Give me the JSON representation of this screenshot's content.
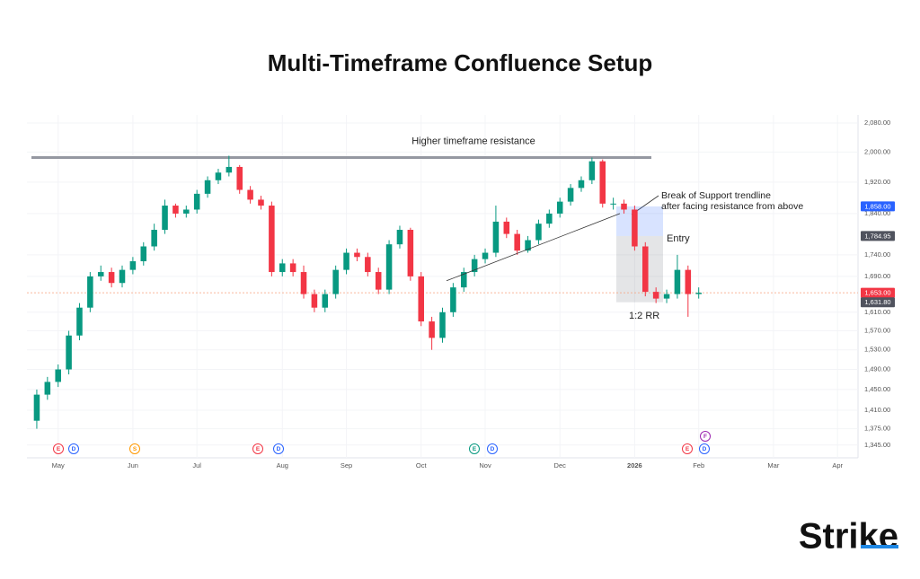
{
  "chart_data": {
    "type": "candlestick",
    "title": "Multi-Timeframe Confluence Setup",
    "categories": [
      null,
      null,
      "May",
      null,
      null,
      null,
      null,
      null,
      null,
      "Jun",
      null,
      null,
      null,
      null,
      null,
      "Jul",
      null,
      null,
      null,
      null,
      null,
      null,
      null,
      "Aug",
      null,
      null,
      null,
      null,
      null,
      "Sep",
      null,
      null,
      null,
      null,
      null,
      null,
      "Oct",
      null,
      null,
      null,
      null,
      null,
      "Nov",
      null,
      null,
      null,
      null,
      null,
      null,
      "Dec",
      null,
      null,
      null,
      null,
      null,
      null,
      "2026",
      null,
      null,
      null,
      null,
      null,
      "Feb",
      null,
      null,
      null,
      null,
      null,
      null,
      "Mar",
      null,
      null,
      null,
      null,
      null,
      "Apr",
      null
    ],
    "open": [
      1390,
      1440,
      1465,
      1490,
      1560,
      1620,
      1690,
      1700,
      1675,
      1705,
      1725,
      1760,
      1800,
      1860,
      1840,
      1850,
      1890,
      1925,
      1945,
      1960,
      1900,
      1875,
      1860,
      1700,
      1720,
      1700,
      1650,
      1620,
      1650,
      1705,
      1745,
      1735,
      1700,
      1660,
      1765,
      1800,
      1690,
      1590,
      1555,
      1610,
      1665,
      1700,
      1730,
      1745,
      1820,
      1790,
      1750,
      1775,
      1815,
      1840,
      1870,
      1905,
      1925,
      1975,
      1865,
      1865,
      1850,
      1760,
      1655,
      1640,
      1650,
      1705,
      1650,
      null,
      null,
      null,
      null,
      null,
      null,
      null,
      null,
      null,
      null,
      null,
      null,
      null,
      null
    ],
    "high": [
      1450,
      1475,
      1500,
      1570,
      1630,
      1700,
      1715,
      1710,
      1715,
      1735,
      1770,
      1815,
      1875,
      1865,
      1860,
      1900,
      1935,
      1955,
      1990,
      1965,
      1910,
      1885,
      1870,
      1730,
      1730,
      1715,
      1660,
      1660,
      1715,
      1755,
      1755,
      1745,
      1710,
      1775,
      1810,
      1805,
      1700,
      1600,
      1620,
      1675,
      1710,
      1740,
      1755,
      1860,
      1830,
      1800,
      1785,
      1825,
      1850,
      1880,
      1915,
      1935,
      1985,
      1980,
      1880,
      1875,
      1860,
      1770,
      1665,
      1660,
      1740,
      1715,
      1665,
      null,
      null,
      null,
      null,
      null,
      null,
      null,
      null,
      null,
      null,
      null,
      null,
      null,
      null
    ],
    "low": [
      1375,
      1430,
      1455,
      1480,
      1550,
      1610,
      1680,
      1665,
      1665,
      1695,
      1715,
      1750,
      1790,
      1830,
      1830,
      1840,
      1880,
      1915,
      1935,
      1890,
      1865,
      1850,
      1690,
      1690,
      1690,
      1640,
      1610,
      1610,
      1640,
      1695,
      1725,
      1690,
      1650,
      1650,
      1755,
      1680,
      1580,
      1530,
      1545,
      1600,
      1655,
      1690,
      1720,
      1735,
      1780,
      1740,
      1745,
      1765,
      1805,
      1830,
      1860,
      1895,
      1915,
      1855,
      1850,
      1840,
      1750,
      1645,
      1630,
      1630,
      1640,
      1600,
      1640,
      null,
      null,
      null,
      null,
      null,
      null,
      null,
      null,
      null,
      null,
      null,
      null,
      null,
      null
    ],
    "close": [
      1440,
      1465,
      1490,
      1560,
      1620,
      1690,
      1700,
      1675,
      1705,
      1725,
      1760,
      1800,
      1860,
      1840,
      1850,
      1890,
      1925,
      1945,
      1960,
      1900,
      1875,
      1860,
      1700,
      1720,
      1700,
      1650,
      1620,
      1650,
      1705,
      1745,
      1735,
      1700,
      1660,
      1765,
      1800,
      1690,
      1590,
      1555,
      1610,
      1665,
      1700,
      1730,
      1745,
      1820,
      1790,
      1750,
      1775,
      1815,
      1840,
      1870,
      1905,
      1925,
      1975,
      1865,
      1865,
      1850,
      1760,
      1655,
      1640,
      1650,
      1705,
      1650,
      1653,
      null,
      null,
      null,
      null,
      null,
      null,
      null,
      null,
      null,
      null,
      null,
      null,
      null,
      null
    ],
    "up_color": "#089981",
    "down_color": "#f23645",
    "log_scale": true,
    "grid": true,
    "ylim": [
      1330,
      2103
    ],
    "yticks": [
      {
        "value": 2080,
        "label": "2,080.00"
      },
      {
        "value": 2000,
        "label": "2,000.00"
      },
      {
        "value": 1920,
        "label": "1,920.00"
      },
      {
        "value": 1840,
        "label": "1,840.00"
      },
      {
        "value": 1740,
        "label": "1,740.00"
      },
      {
        "value": 1690,
        "label": "1,690.00"
      },
      {
        "value": 1610,
        "label": "1,610.00"
      },
      {
        "value": 1570,
        "label": "1,570.00"
      },
      {
        "value": 1530,
        "label": "1,530.00"
      },
      {
        "value": 1490,
        "label": "1,490.00"
      },
      {
        "value": 1450,
        "label": "1,450.00"
      },
      {
        "value": 1410,
        "label": "1,410.00"
      },
      {
        "value": 1375,
        "label": "1,375.00"
      },
      {
        "value": 1345,
        "label": "1,345.00"
      }
    ],
    "price_labels": [
      {
        "value": 1858,
        "label": "1,858.00",
        "color": "#2962ff"
      },
      {
        "value": 1784.95,
        "label": "1,784.95",
        "color": "#50535e"
      },
      {
        "value": 1653,
        "label": "1,653.00",
        "color": "#f23645"
      },
      {
        "value": 1631.8,
        "label": "1,631.80",
        "color": "#50535e"
      }
    ],
    "resistance": {
      "label": "Higher timeframe resistance",
      "value": 1985
    },
    "trendline": {
      "values": [
        1680,
        1840
      ]
    },
    "annotations": {
      "break": [
        "Break of Support trendline",
        "after facing resistance from above"
      ],
      "entry": "Entry",
      "rr": "1:2 RR"
    },
    "events": [
      {
        "letter": "E",
        "color": "#f23645"
      },
      {
        "letter": "D",
        "color": "#2962ff"
      },
      {
        "letter": "S",
        "color": "#ff9800"
      },
      {
        "letter": "E",
        "color": "#f23645"
      },
      {
        "letter": "D",
        "color": "#2962ff"
      },
      {
        "letter": "E",
        "color": "#089981"
      },
      {
        "letter": "D",
        "color": "#2962ff"
      },
      {
        "letter": "E",
        "color": "#f23645"
      },
      {
        "letter": "D",
        "color": "#2962ff"
      },
      {
        "letter": "F",
        "color": "#9c27b0"
      }
    ]
  },
  "logo": {
    "text": "Strike"
  }
}
